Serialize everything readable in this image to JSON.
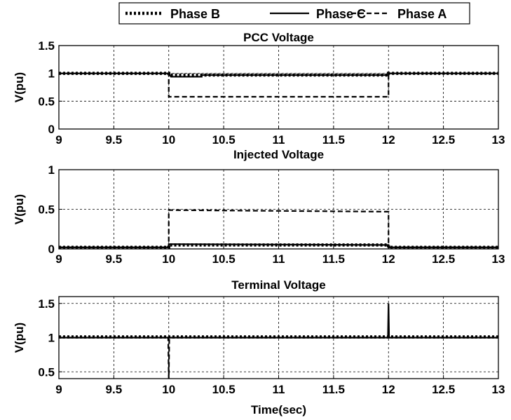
{
  "legend": {
    "entries": [
      {
        "name": "Phase B",
        "style": "dotted"
      },
      {
        "name": "Phase C",
        "style": "solid"
      },
      {
        "name": "Phase A",
        "style": "dashed"
      }
    ]
  },
  "chart_data": [
    {
      "type": "line",
      "title": "PCC Voltage",
      "xlabel": "",
      "ylabel": "V(pu)",
      "xlim": [
        9,
        13
      ],
      "ylim": [
        0,
        1.5
      ],
      "xticks": [
        "9",
        "9.5",
        "10",
        "10.5",
        "11",
        "11.5",
        "12",
        "12.5",
        "13"
      ],
      "yticks": [
        "0",
        "0.5",
        "1",
        "1.5"
      ],
      "grid": true,
      "series": [
        {
          "name": "Phase B",
          "style": "dotted",
          "x": [
            9,
            10,
            10,
            12,
            12,
            13
          ],
          "y": [
            1.0,
            1.0,
            0.97,
            0.97,
            1.0,
            1.0
          ]
        },
        {
          "name": "Phase C",
          "style": "solid",
          "x": [
            9,
            10,
            10.02,
            10.3,
            10.3,
            12,
            12,
            13
          ],
          "y": [
            1.0,
            1.0,
            0.94,
            0.94,
            0.97,
            0.97,
            1.0,
            1.0
          ]
        },
        {
          "name": "Phase A",
          "style": "dashed",
          "x": [
            9,
            10,
            10,
            12,
            12,
            13
          ],
          "y": [
            1.0,
            1.0,
            0.58,
            0.58,
            1.0,
            1.0
          ]
        }
      ]
    },
    {
      "type": "line",
      "title": "Injected Voltage",
      "xlabel": "",
      "ylabel": "V(pu)",
      "xlim": [
        9,
        13
      ],
      "ylim": [
        0,
        1
      ],
      "xticks": [
        "9",
        "9.5",
        "10",
        "10.5",
        "11",
        "11.5",
        "12",
        "12.5",
        "13"
      ],
      "yticks": [
        "0",
        "0.5",
        "1"
      ],
      "grid": true,
      "series": [
        {
          "name": "Phase B",
          "style": "dotted",
          "x": [
            9,
            10,
            10,
            12,
            12,
            13
          ],
          "y": [
            0.02,
            0.02,
            0.05,
            0.05,
            0.02,
            0.02
          ]
        },
        {
          "name": "Phase C",
          "style": "solid",
          "x": [
            9,
            10,
            10,
            12,
            12,
            13
          ],
          "y": [
            0.02,
            0.02,
            0.06,
            0.05,
            0.02,
            0.02
          ]
        },
        {
          "name": "Phase A",
          "style": "dashed",
          "x": [
            9,
            10,
            10,
            12,
            12,
            13
          ],
          "y": [
            0.02,
            0.02,
            0.49,
            0.47,
            0.02,
            0.02
          ]
        }
      ]
    },
    {
      "type": "line",
      "title": "Terminal Voltage",
      "xlabel": "Time(sec)",
      "ylabel": "V(pu)",
      "xlim": [
        9,
        13
      ],
      "ylim": [
        0.4,
        1.6
      ],
      "xticks": [
        "9",
        "9.5",
        "10",
        "10.5",
        "11",
        "11.5",
        "12",
        "12.5",
        "13"
      ],
      "yticks": [
        "0.5",
        "1",
        "1.5"
      ],
      "grid": true,
      "series": [
        {
          "name": "Phase B",
          "style": "dotted",
          "x": [
            9,
            13
          ],
          "y": [
            1.01,
            1.01
          ]
        },
        {
          "name": "Phase C",
          "style": "solid",
          "x": [
            9,
            11.995,
            12,
            12.005,
            13
          ],
          "y": [
            1.0,
            1.0,
            1.5,
            1.0,
            1.0
          ]
        },
        {
          "name": "Phase A",
          "style": "dashed",
          "x": [
            9,
            9.995,
            10,
            10.005,
            13
          ],
          "y": [
            1.0,
            1.0,
            0.4,
            1.0,
            1.0
          ]
        }
      ]
    }
  ]
}
